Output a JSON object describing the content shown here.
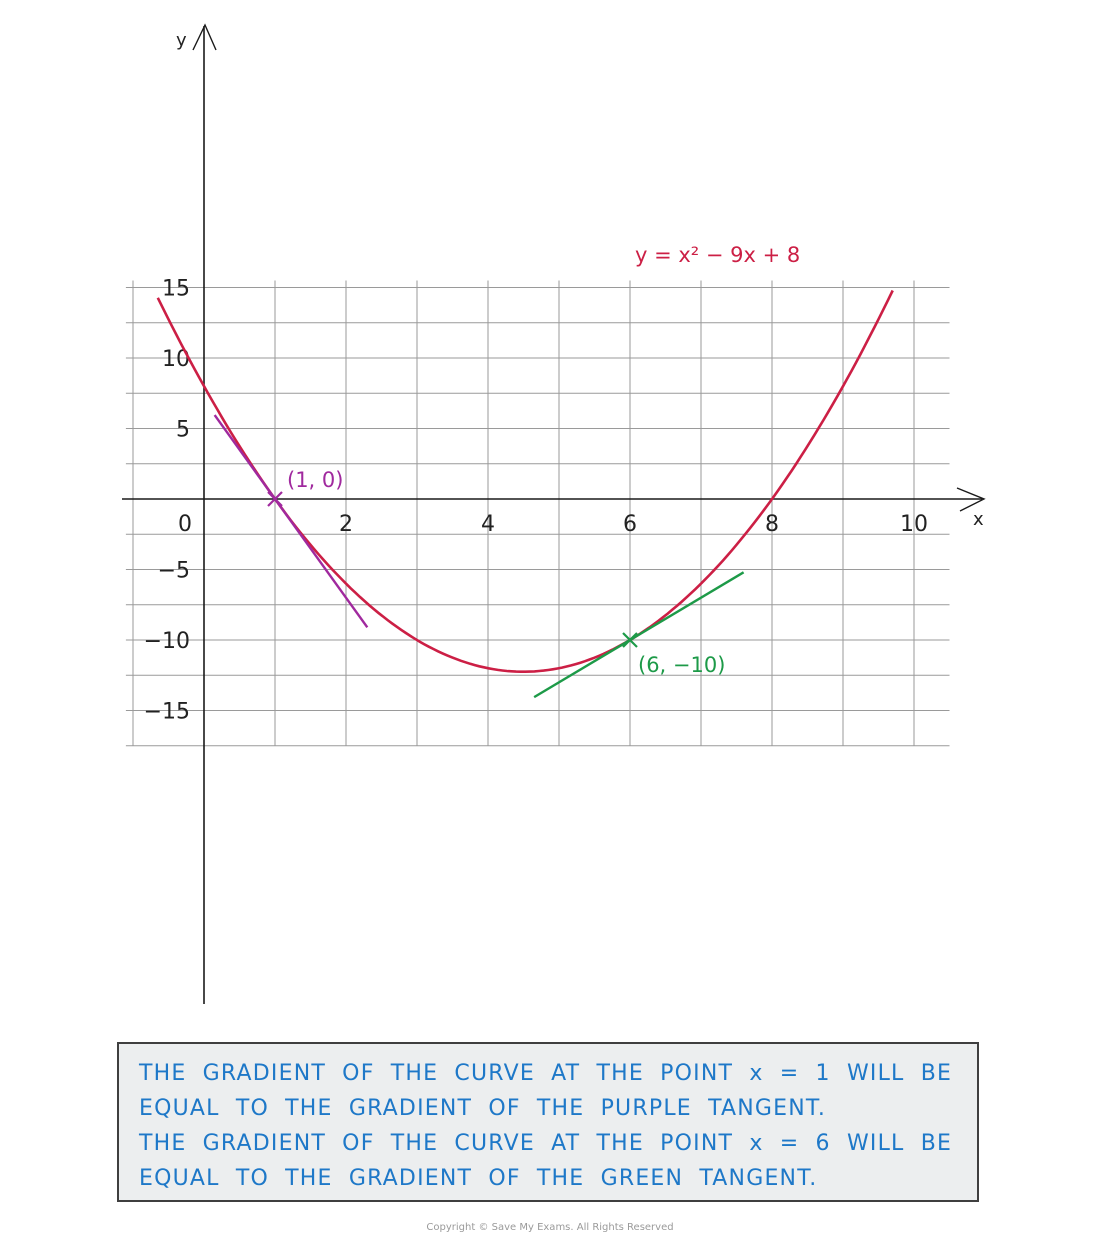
{
  "chart_data": {
    "type": "line",
    "title": "",
    "xlabel": "x",
    "ylabel": "y",
    "xlim": [
      -1,
      10.5
    ],
    "ylim": [
      -17.5,
      15.5
    ],
    "grid": true,
    "x_ticks": [
      2,
      4,
      6,
      8,
      10
    ],
    "y_ticks": [
      15,
      10,
      5,
      -5,
      -10,
      -15
    ],
    "origin_label": "0",
    "series": [
      {
        "name": "y = x² − 9x + 8",
        "kind": "curve",
        "color": "#cc1f45",
        "equation": "y = x^2 - 9x + 8",
        "x_range": [
          -0.65,
          9.7
        ]
      },
      {
        "name": "",
        "kind": "tangent",
        "color": "#a0299e",
        "point": [
          1,
          0
        ],
        "slope": -7,
        "x_range": [
          0.15,
          2.3
        ]
      },
      {
        "name": "",
        "kind": "tangent",
        "color": "#1d9a48",
        "point": [
          6,
          -10
        ],
        "slope": 3,
        "x_range": [
          4.65,
          7.6
        ]
      }
    ],
    "points": [
      {
        "label": "(1, 0)",
        "x": 1,
        "y": 0,
        "color": "#a0299e"
      },
      {
        "label": "(6, −10)",
        "x": 6,
        "y": -10,
        "color": "#1d9a48"
      }
    ]
  },
  "note": {
    "lines": [
      "THE GRADIENT OF THE CURVE AT THE POINT x = 1 WILL BE",
      "EQUAL TO THE GRADIENT OF THE PURPLE TANGENT.",
      "THE GRADIENT OF THE CURVE AT THE POINT x = 6 WILL BE",
      "EQUAL TO THE GRADIENT OF THE GREEN TANGENT."
    ]
  },
  "copyright": "Copyright © Save My Exams. All Rights Reserved"
}
